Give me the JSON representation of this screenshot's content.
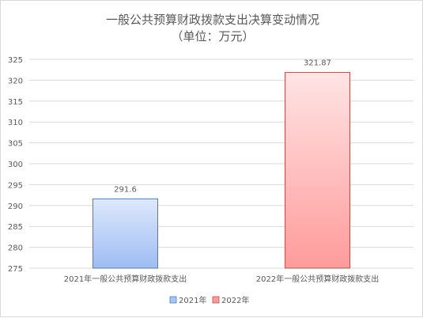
{
  "chart_data": {
    "type": "bar",
    "title": "一般公共预算财政拨款支出决算变动情况",
    "subtitle": "（单位：万元）",
    "categories": [
      "2021年一般公共预算财政拨款支出",
      "2022年一般公共预算财政拨款支出"
    ],
    "values": [
      291.6,
      321.87
    ],
    "data_labels": [
      "291.6",
      "321.87"
    ],
    "ylim": [
      275,
      325
    ],
    "yticks": [
      275,
      280,
      285,
      290,
      295,
      300,
      305,
      310,
      315,
      320,
      325
    ],
    "grid": true,
    "legend_position": "bottom",
    "legend": [
      {
        "name": "2021年",
        "color": "#a9c4f5",
        "border": "#4a7ebb"
      },
      {
        "name": "2022年",
        "color": "#ff9a9a",
        "border": "#c0504d"
      }
    ],
    "bar_gradients": [
      {
        "top": "#dde8fb",
        "bottom": "#9ebdf3",
        "border": "#4a7ebb"
      },
      {
        "top": "#ffe4e4",
        "bottom": "#ff9b9b",
        "border": "#c0504d"
      }
    ]
  }
}
